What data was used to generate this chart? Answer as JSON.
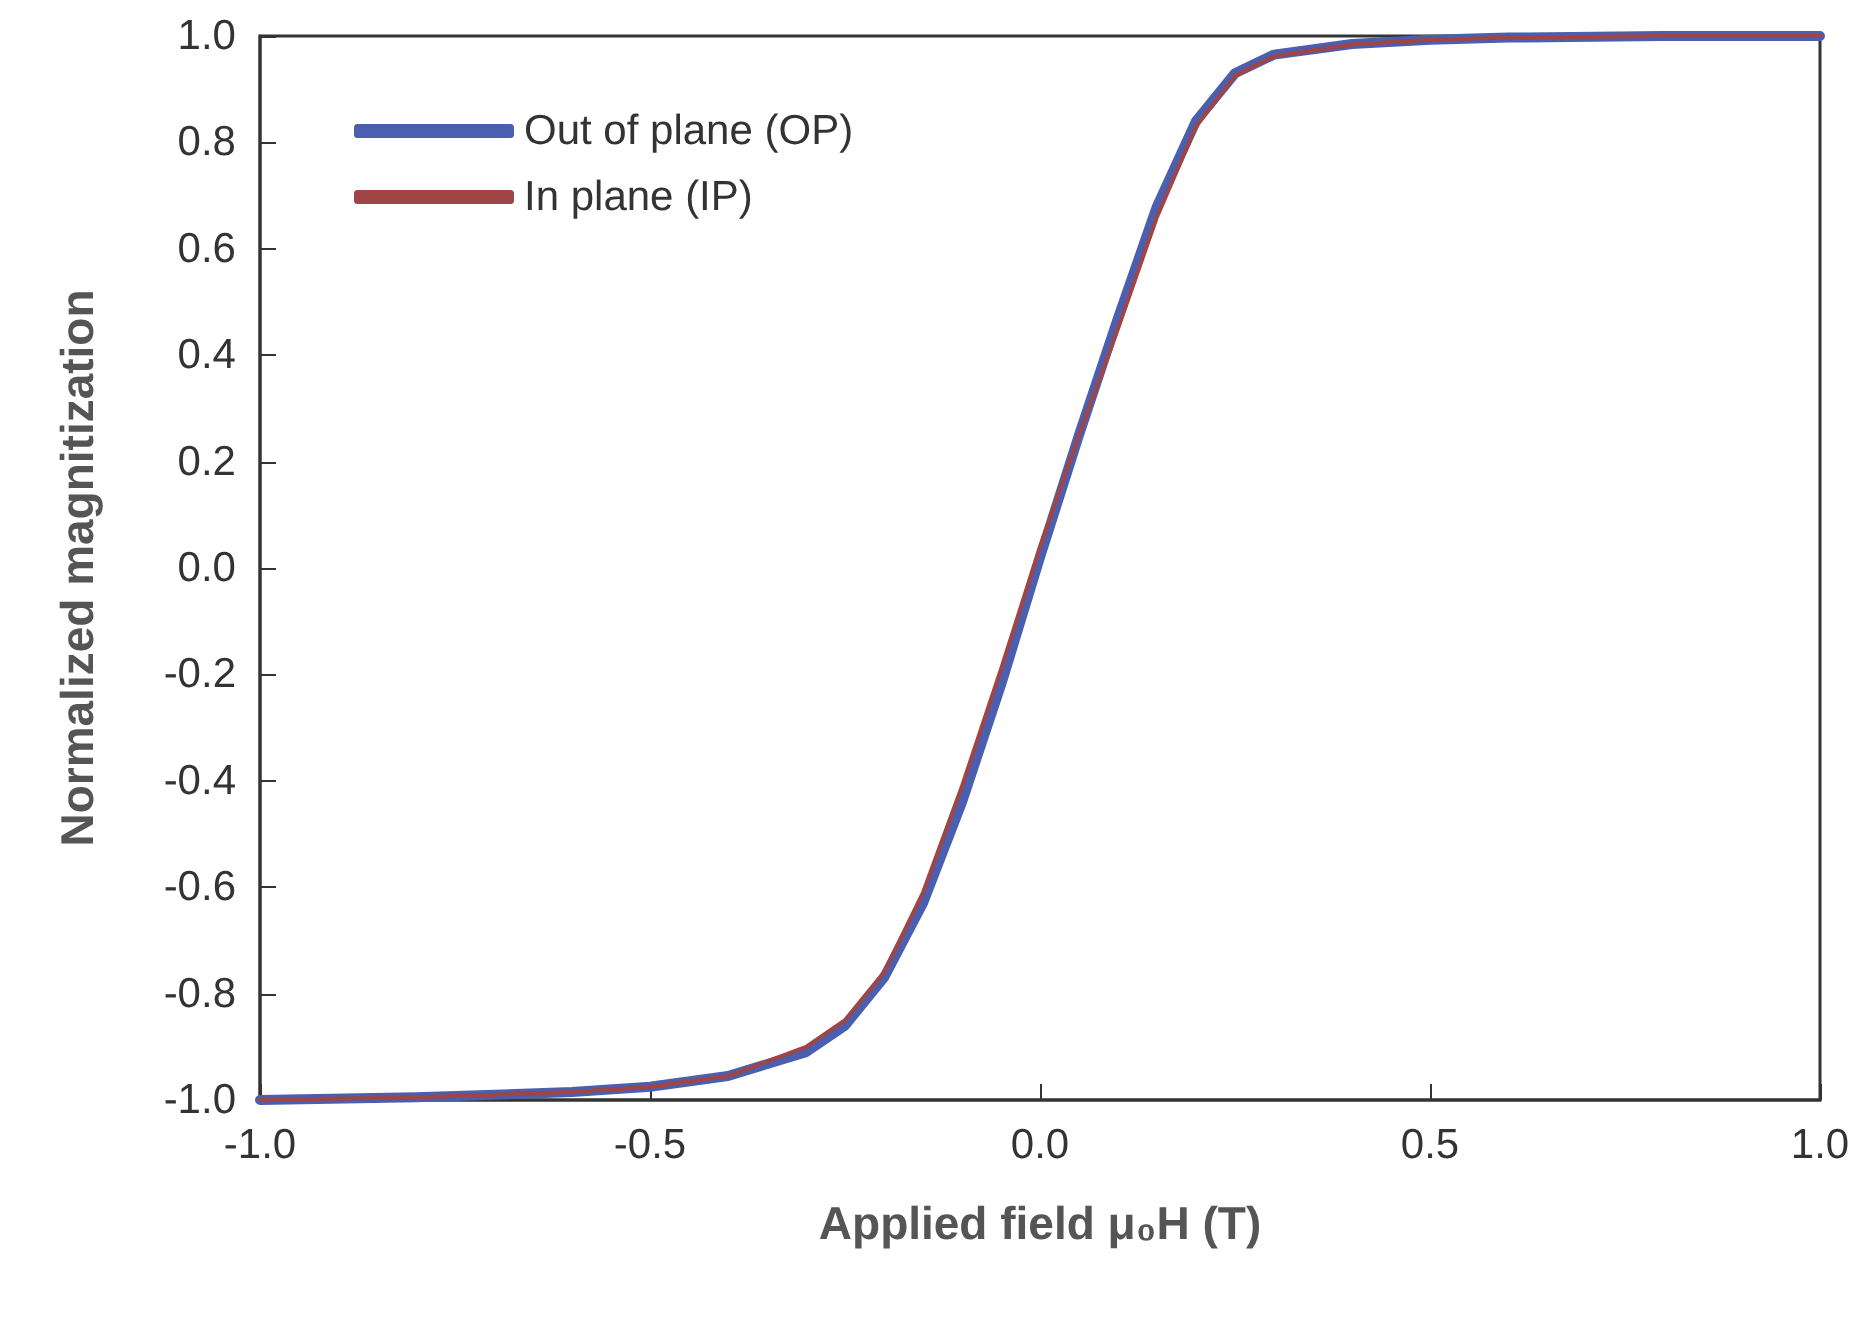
{
  "chart_data": {
    "type": "line",
    "xlabel": "Applied field μ₀H (T)",
    "ylabel": "Normalized magnitization",
    "x": [
      -1,
      -0.8,
      -0.6,
      -0.5,
      -0.4,
      -0.3,
      -0.25,
      -0.2,
      -0.15,
      -0.1,
      -0.05,
      0,
      0.05,
      0.1,
      0.15,
      0.2,
      0.25,
      0.3,
      0.4,
      0.5,
      0.6,
      0.8,
      1
    ],
    "series": [
      {
        "name": "Out of plane (OP)",
        "color": "#4a5fb0",
        "values": [
          -1,
          -0.995,
          -0.985,
          -0.975,
          -0.955,
          -0.91,
          -0.86,
          -0.77,
          -0.63,
          -0.44,
          -0.22,
          0.02,
          0.25,
          0.47,
          0.68,
          0.84,
          0.93,
          0.965,
          0.985,
          0.993,
          0.997,
          1,
          1
        ]
      },
      {
        "name": "In plane (IP)",
        "color": "#a04545",
        "values": [
          -1,
          -0.995,
          -0.985,
          -0.975,
          -0.955,
          -0.9,
          -0.85,
          -0.76,
          -0.61,
          -0.41,
          -0.19,
          0.04,
          0.25,
          0.45,
          0.66,
          0.83,
          0.925,
          0.962,
          0.984,
          0.993,
          0.997,
          1,
          1
        ]
      }
    ],
    "xlim": [
      -1,
      1
    ],
    "ylim": [
      -1,
      1
    ],
    "xticks": [
      {
        "value": -1,
        "label": "-1.0"
      },
      {
        "value": -0.5,
        "label": "-0.5"
      },
      {
        "value": 0,
        "label": "0.0"
      },
      {
        "value": 0.5,
        "label": "0.5"
      },
      {
        "value": 1,
        "label": "1.0"
      }
    ],
    "yticks": [
      {
        "value": -1,
        "label": "-1.0"
      },
      {
        "value": -0.8,
        "label": "-0.8"
      },
      {
        "value": -0.6,
        "label": "-0.6"
      },
      {
        "value": -0.4,
        "label": "-0.4"
      },
      {
        "value": -0.2,
        "label": "-0.2"
      },
      {
        "value": 0,
        "label": "0.0"
      },
      {
        "value": 0.2,
        "label": "0.2"
      },
      {
        "value": 0.4,
        "label": "0.4"
      },
      {
        "value": 0.6,
        "label": "0.6"
      },
      {
        "value": 0.8,
        "label": "0.8"
      },
      {
        "value": 1,
        "label": "1.0"
      }
    ],
    "grid": false,
    "legend": "top left",
    "marker": "none",
    "line_style": "solid"
  }
}
